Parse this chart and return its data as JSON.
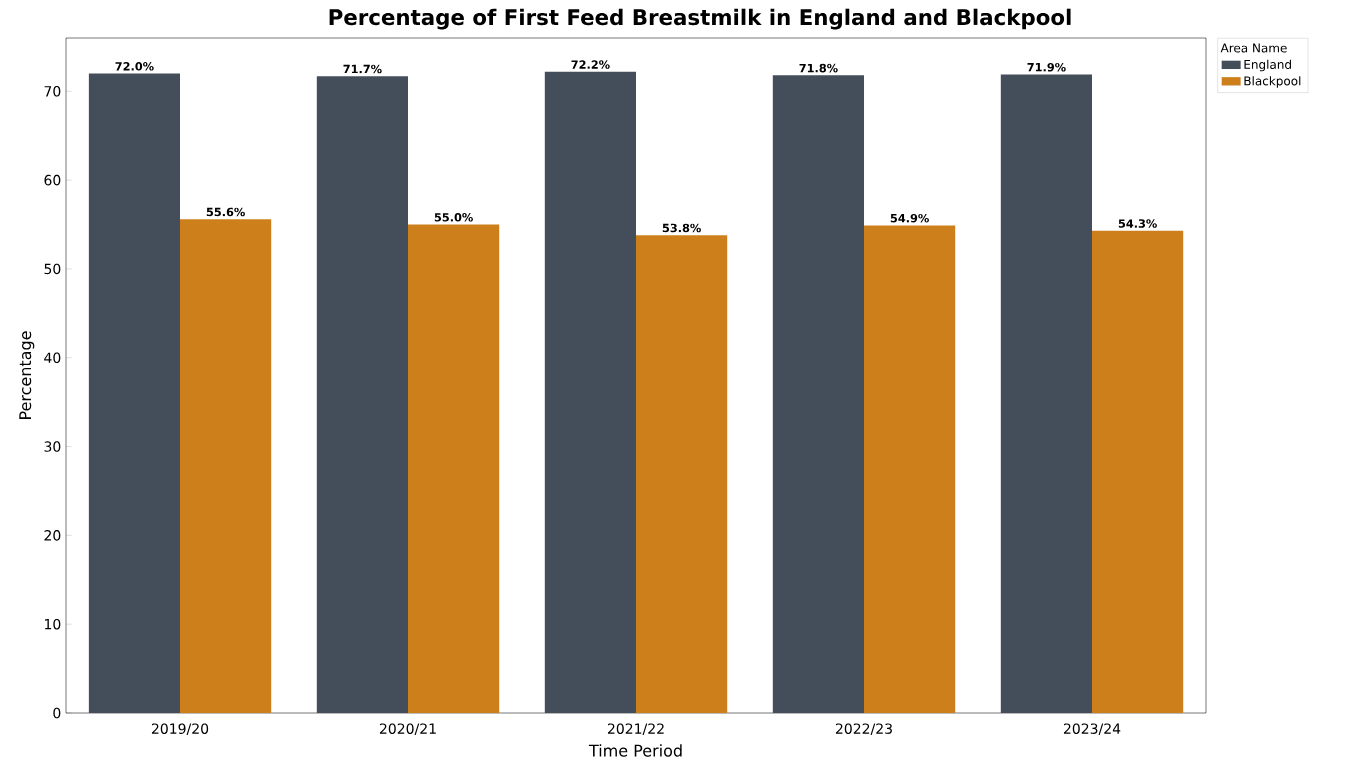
{
  "chart_data": {
    "type": "bar",
    "title": "Percentage of First Feed Breastmilk in England and Blackpool",
    "xlabel": "Time Period",
    "ylabel": "Percentage",
    "legend_title": "Area Name",
    "categories": [
      "2019/20",
      "2020/21",
      "2021/22",
      "2022/23",
      "2023/24"
    ],
    "series": [
      {
        "name": "England",
        "color": "#434e5a",
        "values": [
          72.0,
          71.7,
          72.2,
          71.8,
          71.9
        ],
        "value_labels": [
          "72.0%",
          "71.7%",
          "72.2%",
          "71.8%",
          "71.9%"
        ]
      },
      {
        "name": "Blackpool",
        "color": "#cd7f1c",
        "values": [
          55.6,
          55.0,
          53.8,
          54.9,
          54.3
        ],
        "value_labels": [
          "55.6%",
          "55.0%",
          "53.8%",
          "54.9%",
          "54.3%"
        ]
      }
    ],
    "ylim": [
      0,
      76
    ],
    "yticks": [
      0,
      10,
      20,
      30,
      40,
      50,
      60,
      70
    ],
    "grid": false,
    "legend": "top right"
  }
}
